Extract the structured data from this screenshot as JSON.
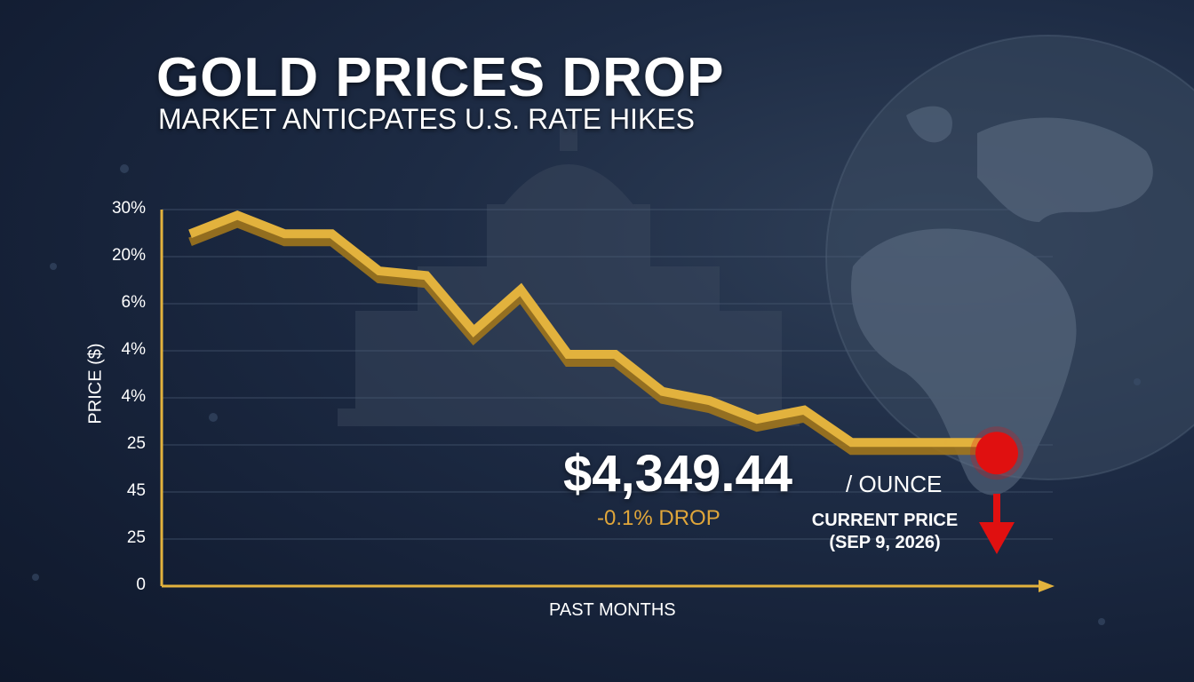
{
  "header": {
    "title": "GOLD PRICES DROP",
    "subtitle": "MARKET ANTICPATES U.S. RATE HIKES"
  },
  "colors": {
    "line": "#e2b23d",
    "line_dark": "#a0761c",
    "axis": "#e2b23d",
    "marker": "#e01010",
    "change_text": "#e0a63a"
  },
  "callout": {
    "price": "$4,349.44",
    "unit": "/ OUNCE",
    "change": "-0.1% DROP",
    "current_label_line1": "CURRENT PRICE",
    "current_label_line2": "(SEP 9, 2026)"
  },
  "chart_data": {
    "type": "line",
    "title": "GOLD PRICES DROP",
    "xlabel": "PAST MONTHS",
    "ylabel": "PRICE ($)",
    "y_tick_labels": [
      "30%",
      "20%",
      "6%",
      "4%",
      "4%",
      "25",
      "45",
      "25",
      "0"
    ],
    "grid": "horizontal",
    "series": [
      {
        "x": [
          0,
          1,
          2,
          3,
          4,
          5,
          6,
          7,
          8,
          9,
          10,
          11,
          12,
          13,
          14,
          15,
          16,
          17
        ],
        "values": [
          7.6,
          8.0,
          7.6,
          7.6,
          6.8,
          6.7,
          5.5,
          6.4,
          5.0,
          5.0,
          4.2,
          4.0,
          3.6,
          3.8,
          3.1,
          3.1,
          3.1,
          3.1
        ]
      }
    ],
    "marker": {
      "label": "CURRENT PRICE (SEP 9, 2026)",
      "value": "$4,349.44"
    }
  }
}
